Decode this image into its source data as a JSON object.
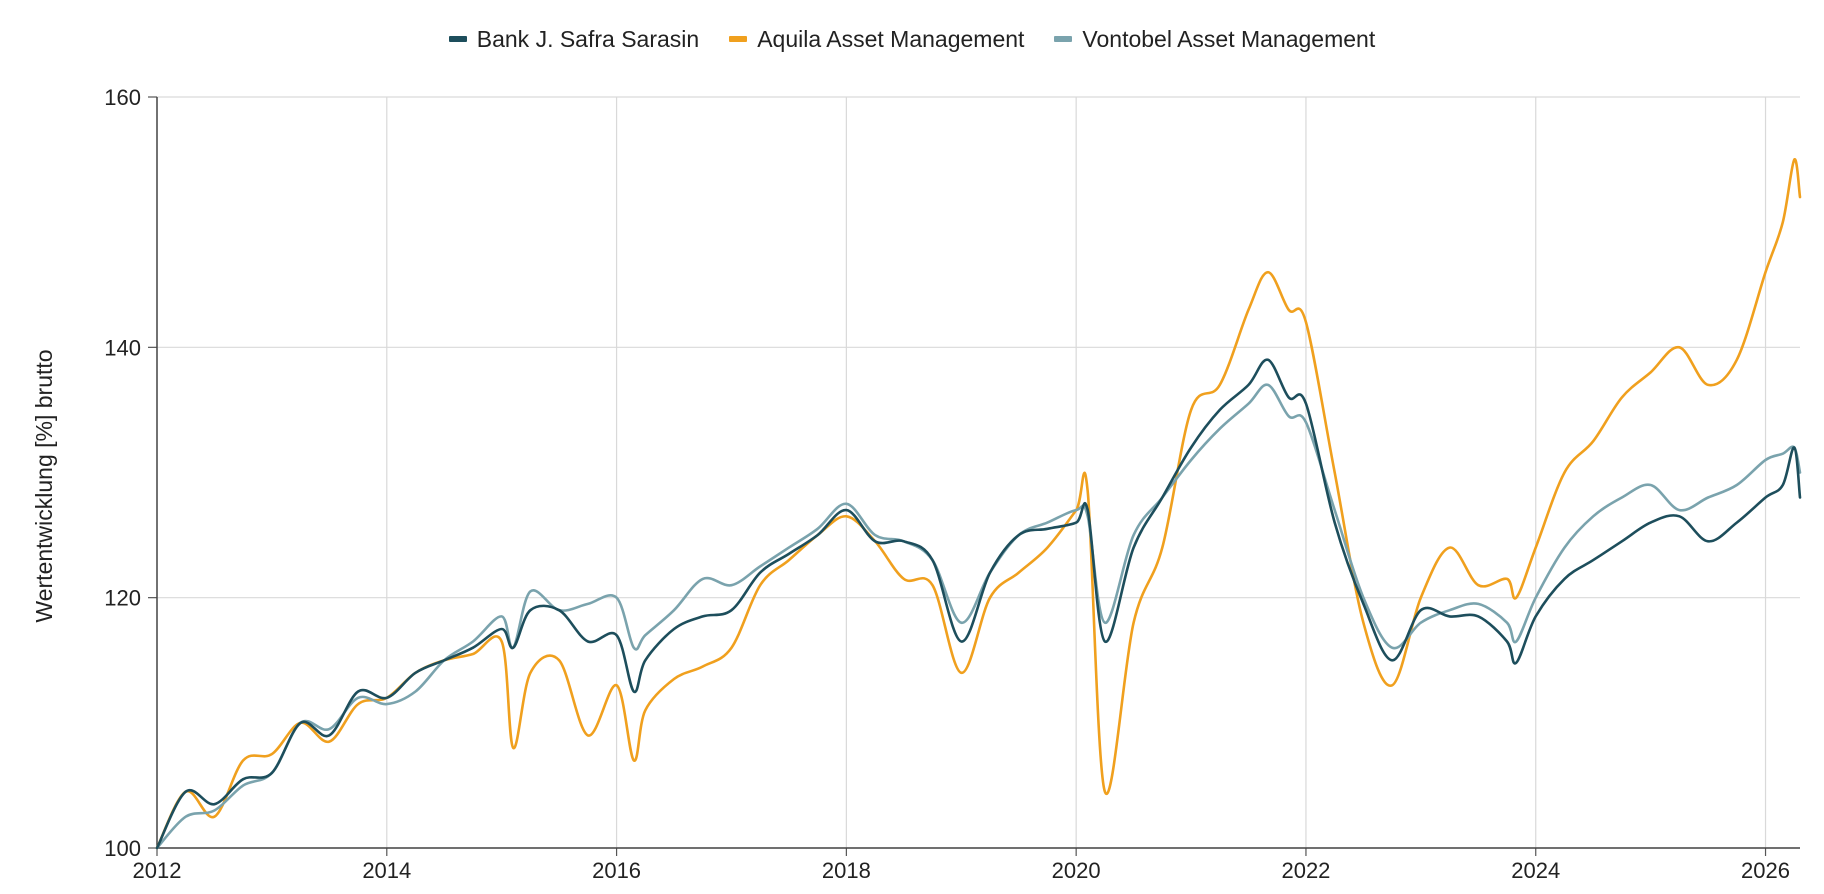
{
  "chart_data": {
    "type": "line",
    "title": "",
    "xlabel": "",
    "ylabel": "Wertentwicklung [%] brutto",
    "xlim": [
      2012.0,
      2026.3
    ],
    "ylim": [
      100,
      160
    ],
    "x_ticks": [
      "2012",
      "2014",
      "2016",
      "2018",
      "2020",
      "2022",
      "2024",
      "2026"
    ],
    "y_ticks": [
      "100",
      "120",
      "140",
      "160"
    ],
    "grid": true,
    "legend_position": "top-center",
    "x": [
      2012.0,
      2012.25,
      2012.5,
      2012.75,
      2013.0,
      2013.25,
      2013.5,
      2013.75,
      2014.0,
      2014.25,
      2014.5,
      2014.75,
      2015.0,
      2015.1,
      2015.25,
      2015.5,
      2015.75,
      2016.0,
      2016.15,
      2016.25,
      2016.5,
      2016.75,
      2017.0,
      2017.25,
      2017.5,
      2017.75,
      2018.0,
      2018.25,
      2018.5,
      2018.75,
      2019.0,
      2019.25,
      2019.5,
      2019.75,
      2020.0,
      2020.1,
      2020.25,
      2020.5,
      2020.75,
      2021.0,
      2021.25,
      2021.5,
      2021.67,
      2021.85,
      2022.0,
      2022.25,
      2022.5,
      2022.75,
      2023.0,
      2023.25,
      2023.5,
      2023.75,
      2023.83,
      2024.0,
      2024.25,
      2024.5,
      2024.75,
      2025.0,
      2025.25,
      2025.5,
      2025.75,
      2026.0,
      2026.15,
      2026.25,
      2026.3
    ],
    "series": [
      {
        "name": "Bank J. Safra Sarasin",
        "color": "#1d4e5c",
        "values": [
          100,
          104.5,
          103.5,
          105.5,
          106,
          110,
          109,
          112.5,
          112,
          114,
          115,
          116,
          117.5,
          116,
          119,
          119,
          116.5,
          117,
          112.5,
          115,
          117.5,
          118.5,
          119,
          122,
          123.5,
          125,
          127,
          124.5,
          124.5,
          123,
          116.5,
          122,
          125,
          125.5,
          126,
          127,
          116.5,
          124,
          128,
          132,
          135,
          137,
          139,
          136,
          135.5,
          126,
          119.5,
          115,
          119,
          118.5,
          118.5,
          116.5,
          114.8,
          118.5,
          121.5,
          123,
          124.5,
          126,
          126.5,
          124.5,
          126,
          128,
          129,
          132,
          128
        ]
      },
      {
        "name": "Aquila Asset Management",
        "color": "#f0a01e",
        "values": [
          100,
          104.5,
          102.5,
          107,
          107.5,
          110,
          108.5,
          111.5,
          112,
          114,
          115,
          115.5,
          116.5,
          108,
          114,
          115,
          109,
          113,
          107,
          111,
          113.5,
          114.5,
          116,
          121,
          123,
          125,
          126.5,
          124.5,
          121.5,
          121,
          114,
          120,
          122,
          124,
          127,
          128.5,
          104.5,
          118,
          124,
          135,
          137,
          143,
          146,
          143,
          142,
          130,
          118,
          113,
          120,
          124,
          121,
          121.5,
          120,
          124,
          130,
          132.5,
          136,
          138,
          140,
          137,
          139,
          146,
          150,
          155,
          152
        ]
      },
      {
        "name": "Vontobel Asset Management",
        "color": "#7aa3ad",
        "values": [
          100,
          102.5,
          103,
          105,
          106,
          110,
          109.5,
          112,
          111.5,
          112.5,
          115,
          116.5,
          118.5,
          116,
          120.5,
          119,
          119.5,
          120,
          116,
          117,
          119,
          121.5,
          121,
          122.5,
          124,
          125.5,
          127.5,
          125,
          124.5,
          123,
          118,
          122,
          125,
          126,
          127,
          126.5,
          118,
          125,
          128,
          131,
          133.5,
          135.5,
          137,
          134.5,
          134,
          127,
          120,
          116,
          118,
          119,
          119.5,
          118,
          116.5,
          120,
          124,
          126.5,
          128,
          129,
          127,
          128,
          129,
          131,
          131.5,
          132,
          130
        ]
      }
    ]
  }
}
